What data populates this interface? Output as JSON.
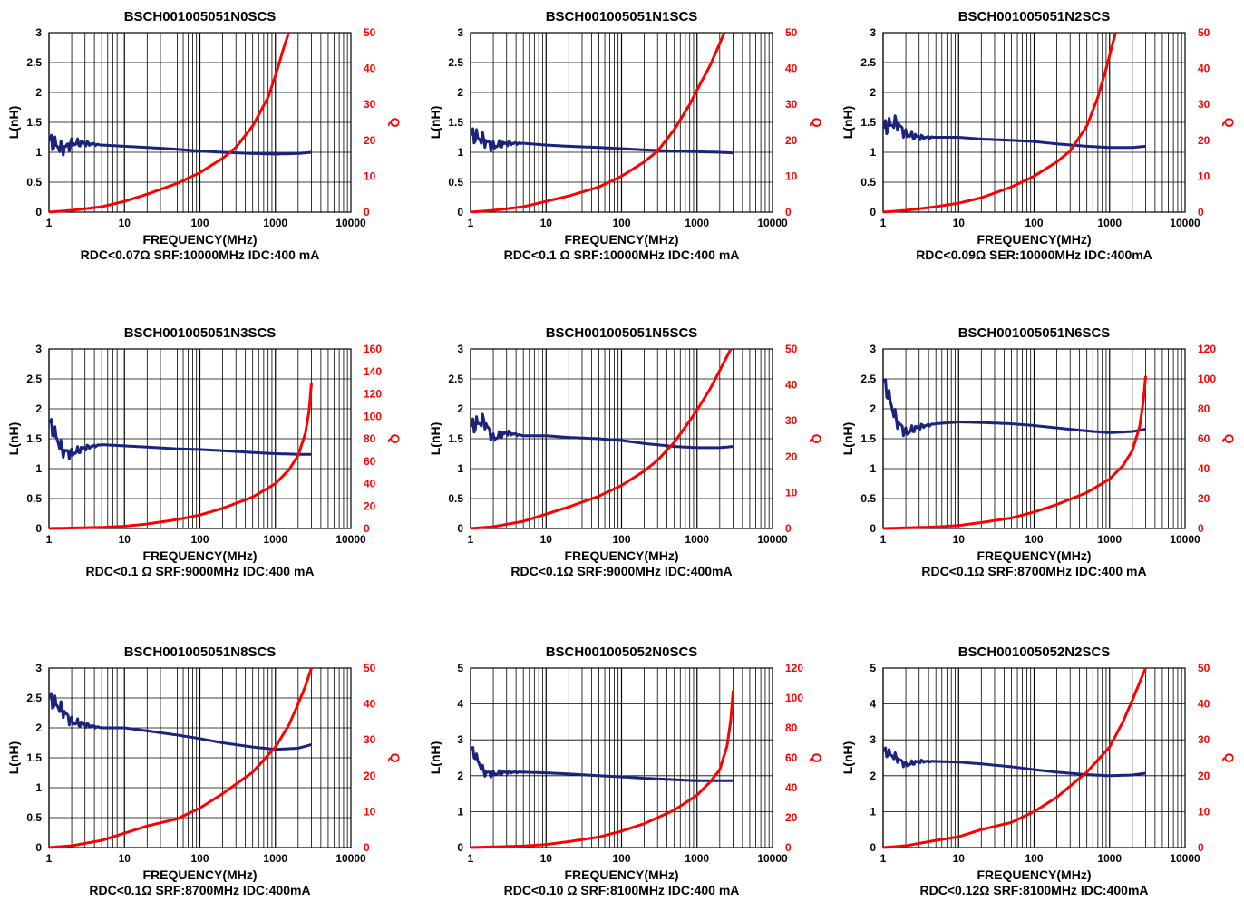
{
  "colors": {
    "inductance": "#1a237e",
    "q_factor": "#ff0000",
    "grid": "#000000"
  },
  "chart_data": [
    {
      "type": "line",
      "title": "BSCH001005051N0SCS",
      "xlabel": "FREQUENCY(MHz)",
      "ylabel": "L(nH)",
      "y2label": "Q",
      "spec": "RDC<0.07Ω SRF:10000MHz IDC:400 mA",
      "xscale": "log",
      "xlim": [
        1,
        10000
      ],
      "ylim": [
        0,
        3
      ],
      "y2lim": [
        0,
        50
      ],
      "xticks": [
        "1",
        "10",
        "100",
        "1000",
        "10000"
      ],
      "yticks": [
        "0",
        "0.5",
        "1",
        "1.5",
        "2",
        "2.5",
        "3"
      ],
      "y2ticks": [
        "0",
        "10",
        "20",
        "30",
        "40",
        "50"
      ],
      "grid": true,
      "series": [
        {
          "name": "L(nH)",
          "axis": "left",
          "x": [
            1,
            1.5,
            2,
            3,
            5,
            10,
            20,
            50,
            100,
            200,
            500,
            1000,
            2000,
            3000
          ],
          "y": [
            1.2,
            1.05,
            1.15,
            1.15,
            1.12,
            1.1,
            1.08,
            1.05,
            1.02,
            1.0,
            0.98,
            0.97,
            0.98,
            1.0
          ],
          "noisy_to": 5
        },
        {
          "name": "Q",
          "axis": "right",
          "x": [
            1,
            2,
            5,
            10,
            20,
            50,
            100,
            200,
            300,
            500,
            800,
            1000,
            1300,
            1500
          ],
          "y": [
            0,
            0.5,
            1.5,
            3,
            5,
            8,
            11,
            15,
            18,
            24,
            32,
            38,
            46,
            50
          ]
        }
      ]
    },
    {
      "type": "line",
      "title": "BSCH001005051N1SCS",
      "xlabel": "FREQUENCY(MHz)",
      "ylabel": "L(nH)",
      "y2label": "Q",
      "spec": "RDC<0.1 Ω SRF:10000MHz IDC:400 mA",
      "xscale": "log",
      "xlim": [
        1,
        10000
      ],
      "ylim": [
        0,
        3
      ],
      "y2lim": [
        0,
        50
      ],
      "xticks": [
        "1",
        "10",
        "100",
        "1000",
        "10000"
      ],
      "yticks": [
        "0",
        "0.5",
        "1",
        "1.5",
        "2",
        "2.5",
        "3"
      ],
      "y2ticks": [
        "0",
        "10",
        "20",
        "30",
        "40",
        "50"
      ],
      "grid": true,
      "series": [
        {
          "name": "L(nH)",
          "axis": "left",
          "x": [
            1,
            1.5,
            2,
            3,
            5,
            10,
            20,
            50,
            100,
            200,
            500,
            1000,
            2000,
            3000
          ],
          "y": [
            1.3,
            1.2,
            1.1,
            1.15,
            1.15,
            1.12,
            1.1,
            1.08,
            1.06,
            1.04,
            1.02,
            1.01,
            1.0,
            0.99
          ],
          "noisy_to": 5
        },
        {
          "name": "Q",
          "axis": "right",
          "x": [
            1,
            2,
            5,
            10,
            20,
            50,
            100,
            200,
            300,
            500,
            800,
            1000,
            1500,
            2000,
            2300
          ],
          "y": [
            0,
            0.5,
            1.5,
            3,
            4.5,
            7,
            10,
            14,
            17,
            23,
            30,
            34,
            41,
            47,
            50
          ]
        }
      ]
    },
    {
      "type": "line",
      "title": "BSCH001005051N2SCS",
      "xlabel": "FREQUENCY(MHz)",
      "ylabel": "L(nH)",
      "y2label": "Q",
      "spec": "RDC<0.09Ω SER:10000MHz IDC:400mA",
      "xscale": "log",
      "xlim": [
        1,
        10000
      ],
      "ylim": [
        0,
        3
      ],
      "y2lim": [
        0,
        50
      ],
      "xticks": [
        "1",
        "10",
        "100",
        "1000",
        "10000"
      ],
      "yticks": [
        "0",
        "0.5",
        "1",
        "1.5",
        "2",
        "2.5",
        "3"
      ],
      "y2ticks": [
        "0",
        "10",
        "20",
        "30",
        "40",
        "50"
      ],
      "grid": true,
      "series": [
        {
          "name": "L(nH)",
          "axis": "left",
          "x": [
            1,
            1.5,
            2,
            3,
            5,
            10,
            20,
            50,
            100,
            200,
            500,
            1000,
            2000,
            3000
          ],
          "y": [
            1.4,
            1.5,
            1.3,
            1.25,
            1.25,
            1.25,
            1.22,
            1.2,
            1.18,
            1.14,
            1.1,
            1.08,
            1.08,
            1.1
          ],
          "noisy_to": 5
        },
        {
          "name": "Q",
          "axis": "right",
          "x": [
            1,
            2,
            5,
            10,
            20,
            50,
            100,
            200,
            300,
            500,
            700,
            900,
            1100,
            1200
          ],
          "y": [
            0,
            0.5,
            1.5,
            2.5,
            4,
            7,
            10,
            14,
            17,
            24,
            32,
            40,
            47,
            50
          ]
        }
      ]
    },
    {
      "type": "line",
      "title": "BSCH001005051N3SCS",
      "xlabel": "FREQUENCY(MHz)",
      "ylabel": "L(nH)",
      "y2label": "Q",
      "spec": "RDC<0.1 Ω SRF:9000MHz IDC:400 mA",
      "xscale": "log",
      "xlim": [
        1,
        10000
      ],
      "ylim": [
        0,
        3
      ],
      "y2lim": [
        0,
        160
      ],
      "xticks": [
        "1",
        "10",
        "100",
        "1000",
        "10000"
      ],
      "yticks": [
        "0",
        "0.5",
        "1",
        "1.5",
        "2",
        "2.5",
        "3"
      ],
      "y2ticks": [
        "0",
        "20",
        "40",
        "60",
        "80",
        "100",
        "120",
        "140",
        "160"
      ],
      "grid": true,
      "series": [
        {
          "name": "L(nH)",
          "axis": "left",
          "x": [
            1,
            1.5,
            2,
            3,
            5,
            10,
            20,
            50,
            100,
            200,
            500,
            1000,
            2000,
            3000
          ],
          "y": [
            1.8,
            1.3,
            1.25,
            1.35,
            1.4,
            1.38,
            1.36,
            1.33,
            1.32,
            1.3,
            1.27,
            1.25,
            1.24,
            1.24
          ],
          "noisy_to": 5
        },
        {
          "name": "Q",
          "axis": "right",
          "x": [
            1,
            5,
            10,
            20,
            50,
            100,
            200,
            500,
            1000,
            1500,
            2000,
            2500,
            2800,
            3000
          ],
          "y": [
            0,
            1,
            2,
            4,
            8,
            12,
            18,
            28,
            40,
            52,
            65,
            85,
            105,
            130
          ]
        }
      ]
    },
    {
      "type": "line",
      "title": "BSCH001005051N5SCS",
      "xlabel": "FREQUENCY(MHz)",
      "ylabel": "L(nH)",
      "y2label": "Q",
      "spec": "RDC<0.1Ω SRF:9000MHz IDC:400mA",
      "xscale": "log",
      "xlim": [
        1,
        10000
      ],
      "ylim": [
        0,
        3
      ],
      "y2lim": [
        0,
        50
      ],
      "xticks": [
        "1",
        "10",
        "100",
        "1000",
        "10000"
      ],
      "yticks": [
        "0",
        "0.5",
        "1",
        "1.5",
        "2",
        "2.5",
        "3"
      ],
      "y2ticks": [
        "0",
        "10",
        "20",
        "30",
        "40",
        "50"
      ],
      "grid": true,
      "series": [
        {
          "name": "L(nH)",
          "axis": "left",
          "x": [
            1,
            1.5,
            2,
            3,
            5,
            10,
            20,
            50,
            100,
            200,
            500,
            1000,
            2000,
            3000
          ],
          "y": [
            1.7,
            1.8,
            1.5,
            1.6,
            1.55,
            1.55,
            1.52,
            1.5,
            1.47,
            1.42,
            1.37,
            1.35,
            1.35,
            1.37
          ],
          "noisy_to": 5
        },
        {
          "name": "Q",
          "axis": "right",
          "x": [
            1,
            2,
            5,
            10,
            20,
            50,
            100,
            200,
            300,
            500,
            800,
            1000,
            1500,
            2000,
            2800
          ],
          "y": [
            0,
            0.5,
            2,
            4,
            6,
            9,
            12,
            16,
            19,
            24,
            30,
            33,
            39,
            44,
            50
          ]
        }
      ]
    },
    {
      "type": "line",
      "title": "BSCH001005051N6SCS",
      "xlabel": "FREQUENCY(MHz)",
      "ylabel": "L(nH)",
      "y2label": "Q",
      "spec": "RDC<0.1Ω SRF:8700MHz IDC:400 mA",
      "xscale": "log",
      "xlim": [
        1,
        10000
      ],
      "ylim": [
        0,
        3
      ],
      "y2lim": [
        0,
        120
      ],
      "xticks": [
        "1",
        "10",
        "100",
        "1000",
        "10000"
      ],
      "yticks": [
        "0",
        "0.5",
        "1",
        "1.5",
        "2",
        "2.5",
        "3"
      ],
      "y2ticks": [
        "0",
        "20",
        "40",
        "60",
        "80",
        "100",
        "120"
      ],
      "grid": true,
      "series": [
        {
          "name": "L(nH)",
          "axis": "left",
          "x": [
            1,
            1.5,
            2,
            3,
            5,
            10,
            20,
            50,
            100,
            200,
            500,
            1000,
            2000,
            3000
          ],
          "y": [
            2.5,
            1.8,
            1.6,
            1.7,
            1.75,
            1.78,
            1.77,
            1.75,
            1.72,
            1.68,
            1.63,
            1.6,
            1.62,
            1.66
          ],
          "noisy_to": 5
        },
        {
          "name": "Q",
          "axis": "right",
          "x": [
            1,
            5,
            10,
            20,
            50,
            100,
            200,
            500,
            1000,
            1500,
            2000,
            2500,
            2800,
            3000
          ],
          "y": [
            0,
            1,
            2,
            4,
            7,
            11,
            16,
            24,
            33,
            42,
            52,
            68,
            85,
            102
          ]
        }
      ]
    },
    {
      "type": "line",
      "title": "BSCH001005051N8SCS",
      "xlabel": "FREQUENCY(MHz)",
      "ylabel": "L(nH)",
      "y2label": "Q",
      "spec": "RDC<0.1Ω SRF:8700MHz IDC:400mA",
      "xscale": "log",
      "xlim": [
        1,
        10000
      ],
      "ylim": [
        0,
        3
      ],
      "y2lim": [
        0,
        50
      ],
      "xticks": [
        "1",
        "10",
        "100",
        "1000",
        "10000"
      ],
      "yticks": [
        "0",
        "0.5",
        "1",
        "1.5",
        "2",
        "2.5",
        "3"
      ],
      "y2ticks": [
        "0",
        "10",
        "20",
        "30",
        "40",
        "50"
      ],
      "grid": true,
      "series": [
        {
          "name": "L(nH)",
          "axis": "left",
          "x": [
            1,
            1.5,
            2,
            3,
            5,
            10,
            20,
            50,
            100,
            200,
            500,
            1000,
            2000,
            3000
          ],
          "y": [
            2.5,
            2.3,
            2.1,
            2.05,
            2.0,
            2.0,
            1.95,
            1.88,
            1.82,
            1.75,
            1.68,
            1.64,
            1.66,
            1.72
          ],
          "noisy_to": 5
        },
        {
          "name": "Q",
          "axis": "right",
          "x": [
            1,
            2,
            5,
            10,
            20,
            50,
            100,
            200,
            500,
            1000,
            1500,
            2000,
            2500,
            3000
          ],
          "y": [
            0,
            0.5,
            2,
            4,
            6,
            8,
            11,
            15,
            21,
            28,
            34,
            40,
            45,
            50
          ]
        }
      ]
    },
    {
      "type": "line",
      "title": "BSCH001005052N0SCS",
      "xlabel": "FREQUENCY(MHz)",
      "ylabel": "L(nH)",
      "y2label": "Q",
      "spec": "RDC<0.10 Ω SRF:8100MHz IDC:400 mA",
      "xscale": "log",
      "xlim": [
        1,
        10000
      ],
      "ylim": [
        0,
        5
      ],
      "y2lim": [
        0,
        120
      ],
      "xticks": [
        "1",
        "10",
        "100",
        "1000",
        "10000"
      ],
      "yticks": [
        "0",
        "1",
        "2",
        "3",
        "4",
        "5"
      ],
      "y2ticks": [
        "0",
        "20",
        "40",
        "60",
        "80",
        "100",
        "120"
      ],
      "grid": true,
      "series": [
        {
          "name": "L(nH)",
          "axis": "left",
          "x": [
            1,
            1.5,
            2,
            3,
            5,
            10,
            20,
            50,
            100,
            200,
            500,
            1000,
            2000,
            3000
          ],
          "y": [
            2.8,
            2.1,
            2.05,
            2.1,
            2.1,
            2.08,
            2.05,
            2.0,
            1.97,
            1.93,
            1.89,
            1.86,
            1.86,
            1.86
          ],
          "noisy_to": 5
        },
        {
          "name": "Q",
          "axis": "right",
          "x": [
            1,
            5,
            10,
            20,
            50,
            100,
            200,
            500,
            1000,
            1500,
            2000,
            2500,
            2800,
            3000
          ],
          "y": [
            0,
            1,
            2,
            4,
            7,
            11,
            16,
            25,
            35,
            44,
            52,
            68,
            85,
            105
          ]
        }
      ]
    },
    {
      "type": "line",
      "title": "BSCH001005052N2SCS",
      "xlabel": "FREQUENCY(MHz)",
      "ylabel": "L(nH)",
      "y2label": "Q",
      "spec": "RDC<0.12Ω SRF:8100MHz IDC:400mA",
      "xscale": "log",
      "xlim": [
        1,
        10000
      ],
      "ylim": [
        0,
        5
      ],
      "y2lim": [
        0,
        50
      ],
      "xticks": [
        "1",
        "10",
        "100",
        "1000",
        "10000"
      ],
      "yticks": [
        "0",
        "1",
        "2",
        "3",
        "4",
        "5"
      ],
      "y2ticks": [
        "0",
        "10",
        "20",
        "30",
        "40",
        "50"
      ],
      "grid": true,
      "series": [
        {
          "name": "L(nH)",
          "axis": "left",
          "x": [
            1,
            1.5,
            2,
            3,
            5,
            10,
            20,
            50,
            100,
            200,
            500,
            1000,
            2000,
            3000
          ],
          "y": [
            2.7,
            2.5,
            2.3,
            2.4,
            2.4,
            2.38,
            2.33,
            2.25,
            2.17,
            2.1,
            2.03,
            2.0,
            2.02,
            2.07
          ],
          "noisy_to": 5
        },
        {
          "name": "Q",
          "axis": "right",
          "x": [
            1,
            2,
            5,
            10,
            20,
            50,
            100,
            200,
            500,
            1000,
            1500,
            2000,
            2500,
            3000
          ],
          "y": [
            0,
            0.5,
            2,
            3,
            5,
            7,
            10,
            14,
            21,
            28,
            35,
            41,
            46,
            50
          ]
        }
      ]
    }
  ]
}
